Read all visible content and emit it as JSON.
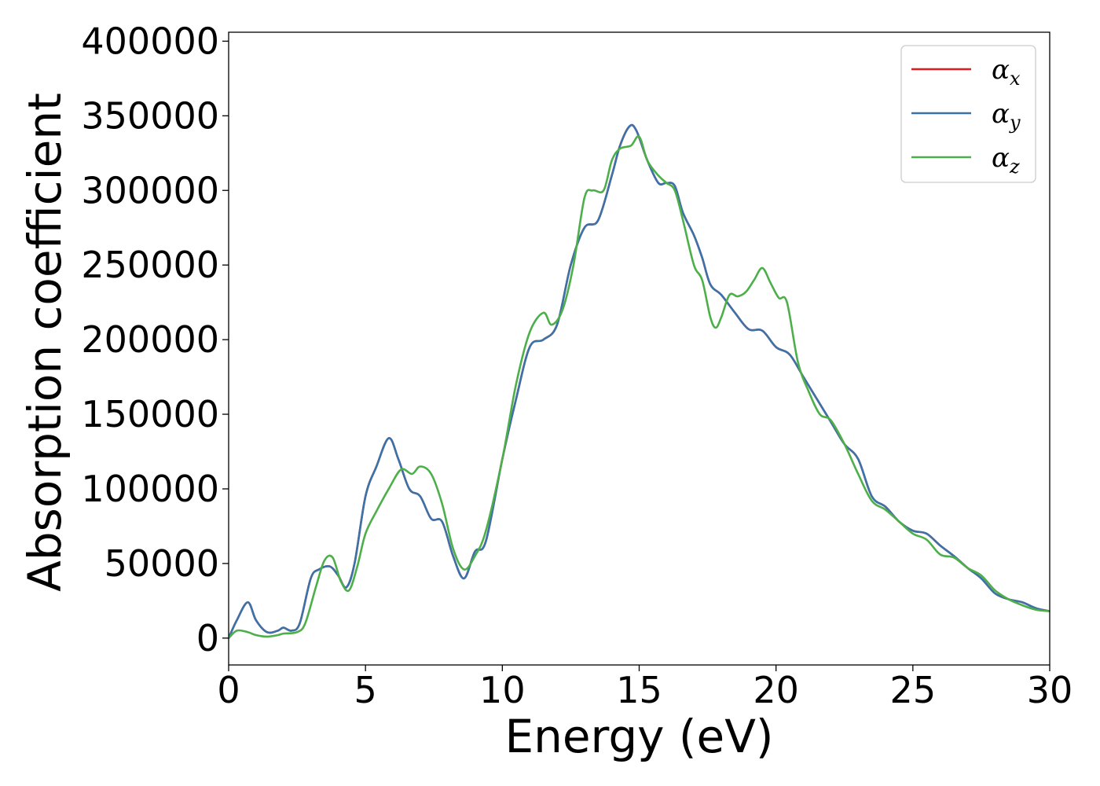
{
  "chart_data": {
    "type": "line",
    "xlabel": "Energy (eV)",
    "ylabel": "Absorption coefficient",
    "xlim": [
      0,
      30
    ],
    "ylim": [
      -18000,
      406000
    ],
    "xticks": [
      0,
      5,
      10,
      15,
      20,
      25,
      30
    ],
    "yticks": [
      0,
      50000,
      100000,
      150000,
      200000,
      250000,
      300000,
      350000,
      400000
    ],
    "grid": false,
    "legend_position": "top-right",
    "series": [
      {
        "name": "α_x",
        "legend_base": "α",
        "legend_sub": "x",
        "color": "#e41a1c",
        "x": [
          0,
          0.3,
          0.7,
          1.0,
          1.4,
          1.8,
          2.0,
          2.3,
          2.6,
          3.0,
          3.3,
          3.7,
          4.0,
          4.3,
          4.6,
          5.0,
          5.4,
          5.85,
          6.2,
          6.6,
          7.0,
          7.4,
          7.8,
          8.2,
          8.6,
          9.0,
          9.4,
          10.0,
          10.5,
          11.0,
          11.5,
          12.0,
          12.5,
          13.0,
          13.5,
          14.0,
          14.3,
          14.65,
          14.9,
          15.3,
          15.7,
          16.0,
          16.3,
          16.6,
          17.0,
          17.3,
          17.6,
          18.0,
          18.5,
          19.0,
          19.5,
          20.0,
          20.5,
          21.0,
          21.5,
          22.0,
          22.5,
          23.0,
          23.5,
          24.0,
          24.5,
          25.0,
          25.5,
          26.0,
          26.5,
          27.0,
          27.5,
          28.0,
          28.5,
          29.0,
          29.5,
          30.0
        ],
        "y": [
          0,
          12000,
          24000,
          12000,
          4000,
          5000,
          7000,
          5000,
          10000,
          40000,
          46000,
          48000,
          42000,
          34000,
          50000,
          95000,
          115000,
          134000,
          120000,
          100000,
          95000,
          80000,
          78000,
          55000,
          40000,
          58000,
          65000,
          120000,
          160000,
          195000,
          200000,
          210000,
          250000,
          275000,
          280000,
          310000,
          330000,
          343000,
          340000,
          320000,
          305000,
          305000,
          303000,
          285000,
          270000,
          255000,
          237000,
          230000,
          218000,
          207000,
          206000,
          195000,
          190000,
          175000,
          160000,
          145000,
          130000,
          120000,
          95000,
          88000,
          78000,
          72000,
          70000,
          62000,
          55000,
          47000,
          40000,
          30000,
          26000,
          24000,
          20000,
          18000
        ]
      },
      {
        "name": "α_y",
        "legend_base": "α",
        "legend_sub": "y",
        "color": "#3a73a9",
        "x": [
          0,
          0.3,
          0.7,
          1.0,
          1.4,
          1.8,
          2.0,
          2.3,
          2.6,
          3.0,
          3.3,
          3.7,
          4.0,
          4.3,
          4.6,
          5.0,
          5.4,
          5.85,
          6.2,
          6.6,
          7.0,
          7.4,
          7.8,
          8.2,
          8.6,
          9.0,
          9.4,
          10.0,
          10.5,
          11.0,
          11.5,
          12.0,
          12.5,
          13.0,
          13.5,
          14.0,
          14.3,
          14.65,
          14.9,
          15.3,
          15.7,
          16.0,
          16.3,
          16.6,
          17.0,
          17.3,
          17.6,
          18.0,
          18.5,
          19.0,
          19.5,
          20.0,
          20.5,
          21.0,
          21.5,
          22.0,
          22.5,
          23.0,
          23.5,
          24.0,
          24.5,
          25.0,
          25.5,
          26.0,
          26.5,
          27.0,
          27.5,
          28.0,
          28.5,
          29.0,
          29.5,
          30.0
        ],
        "y": [
          0,
          12000,
          24000,
          12000,
          4000,
          5000,
          7000,
          5000,
          10000,
          40000,
          46000,
          48000,
          42000,
          34000,
          50000,
          95000,
          115000,
          134000,
          120000,
          100000,
          95000,
          80000,
          78000,
          55000,
          40000,
          58000,
          65000,
          120000,
          160000,
          195000,
          200000,
          210000,
          250000,
          275000,
          280000,
          310000,
          330000,
          343000,
          340000,
          320000,
          305000,
          305000,
          303000,
          285000,
          270000,
          255000,
          237000,
          230000,
          218000,
          207000,
          206000,
          195000,
          190000,
          175000,
          160000,
          145000,
          130000,
          120000,
          95000,
          88000,
          78000,
          72000,
          70000,
          62000,
          55000,
          47000,
          40000,
          30000,
          26000,
          24000,
          20000,
          18000
        ]
      },
      {
        "name": "α_z",
        "legend_base": "α",
        "legend_sub": "z",
        "color": "#4daf4a",
        "x": [
          0,
          0.3,
          0.7,
          1.0,
          1.4,
          1.8,
          2.0,
          2.5,
          2.8,
          3.2,
          3.5,
          3.8,
          4.1,
          4.4,
          4.7,
          5.0,
          5.4,
          5.85,
          6.3,
          6.7,
          7.0,
          7.4,
          7.8,
          8.2,
          8.6,
          9.0,
          9.4,
          10.0,
          10.5,
          11.0,
          11.5,
          11.8,
          12.2,
          12.6,
          13.0,
          13.3,
          13.7,
          14.0,
          14.3,
          14.7,
          15.0,
          15.3,
          15.7,
          16.0,
          16.3,
          16.6,
          17.0,
          17.3,
          17.6,
          17.8,
          18.0,
          18.3,
          18.6,
          18.9,
          19.2,
          19.5,
          19.8,
          20.1,
          20.4,
          20.8,
          21.2,
          21.6,
          22.0,
          22.5,
          23.0,
          23.5,
          24.0,
          24.5,
          25.0,
          25.5,
          26.0,
          26.5,
          27.0,
          27.5,
          28.0,
          28.5,
          29.0,
          29.5,
          30.0
        ],
        "y": [
          0,
          5000,
          4000,
          2000,
          1000,
          2000,
          3000,
          4000,
          10000,
          35000,
          52000,
          54000,
          38000,
          32000,
          48000,
          70000,
          85000,
          100000,
          113000,
          110000,
          115000,
          110000,
          90000,
          60000,
          46000,
          55000,
          72000,
          120000,
          170000,
          205000,
          218000,
          210000,
          220000,
          250000,
          295000,
          300000,
          300000,
          320000,
          328000,
          330000,
          336000,
          320000,
          310000,
          305000,
          300000,
          280000,
          250000,
          240000,
          215000,
          208000,
          215000,
          230000,
          229000,
          232000,
          240000,
          248000,
          238000,
          228000,
          225000,
          185000,
          165000,
          150000,
          146000,
          130000,
          110000,
          92000,
          86000,
          78000,
          70000,
          66000,
          56000,
          54000,
          47000,
          42000,
          32000,
          26000,
          22000,
          19000,
          18000
        ]
      }
    ]
  }
}
